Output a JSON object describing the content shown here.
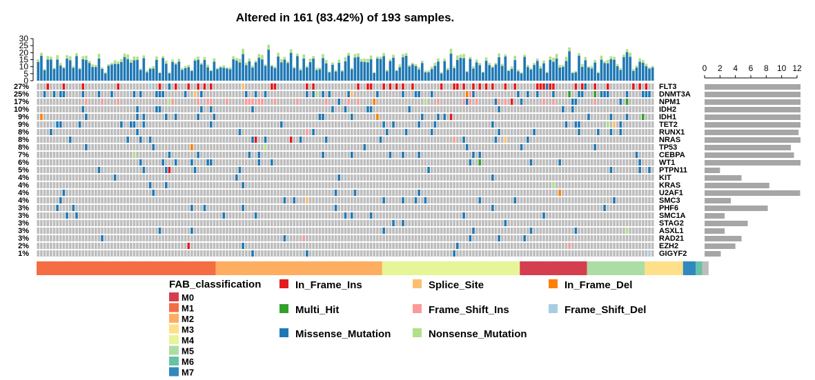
{
  "chart_data": {
    "type": "heatmap",
    "title": "Altered in 161 (83.42%) of 193 samples.",
    "n_samples": 193,
    "tmb_ylim": [
      0,
      30
    ],
    "tmb_ticks": [
      0,
      5,
      10,
      15,
      20,
      25,
      30
    ],
    "genes": [
      "FLT3",
      "DNMT3A",
      "NPM1",
      "IDH2",
      "IDH1",
      "TET2",
      "RUNX1",
      "NRAS",
      "TP53",
      "CEBPA",
      "WT1",
      "PTPN11",
      "KIT",
      "KRAS",
      "U2AF1",
      "SMC3",
      "PHF6",
      "SMC1A",
      "STAG2",
      "ASXL1",
      "RAD21",
      "EZH2",
      "GIGYF2"
    ],
    "gene_percent": [
      "27%",
      "25%",
      "17%",
      "10%",
      "9%",
      "9%",
      "8%",
      "8%",
      "8%",
      "7%",
      "6%",
      "5%",
      "4%",
      "4%",
      "4%",
      "4%",
      "3%",
      "3%",
      "3%",
      "3%",
      "3%",
      "2%",
      "1%"
    ],
    "gene_bar_values": [
      12.6,
      12.6,
      12.6,
      12.6,
      12.6,
      12.6,
      12.2,
      12.6,
      11.2,
      11.6,
      12.6,
      2.0,
      4.8,
      8.4,
      12.4,
      3.4,
      8.2,
      2.6,
      5.6,
      2.6,
      4.8,
      4.0,
      2.1
    ],
    "gene_bar_xlim": [
      0,
      12
    ],
    "gene_bar_ticks": [
      0,
      2,
      4,
      6,
      8,
      10,
      12
    ],
    "variant_colors": {
      "In_Frame_Ins": "#e31a1c",
      "Splice_Site": "#fdbf6f",
      "In_Frame_Del": "#ff7f00",
      "Multi_Hit": "#33a02c",
      "Frame_Shift_Ins": "#fb9a99",
      "Frame_Shift_Del": "#a6cee3",
      "Missense_Mutation": "#1f78b4",
      "Nonsense_Mutation": "#b2df8a"
    },
    "variant_legend": [
      "In_Frame_Ins",
      "Splice_Site",
      "In_Frame_Del",
      "Multi_Hit",
      "Frame_Shift_Ins",
      "Frame_Shift_Del",
      "Missense_Mutation",
      "Nonsense_Mutation"
    ],
    "fab": {
      "title": "FAB_classification",
      "classes": [
        "M0",
        "M1",
        "M2",
        "M3",
        "M4",
        "M5",
        "M6",
        "M7"
      ],
      "colors": {
        "M0": "#d53e4f",
        "M1": "#f46d43",
        "M2": "#fdae61",
        "M3": "#fee08b",
        "M4": "#e6f598",
        "M5": "#abdda4",
        "M6": "#66c2a5",
        "M7": "#3288bd"
      },
      "annotation_order": [
        {
          "class": "M1",
          "count": 56
        },
        {
          "class": "M2",
          "count": 52
        },
        {
          "class": "M4",
          "count": 43
        },
        {
          "class": "M0",
          "count": 21
        },
        {
          "class": "M5",
          "count": 18
        },
        {
          "class": "M3",
          "count": 12
        },
        {
          "class": "M7",
          "count": 4
        },
        {
          "class": "M6",
          "count": 2
        },
        {
          "class": "other",
          "count": 2
        }
      ],
      "other_color": "#bdbdbd"
    }
  }
}
